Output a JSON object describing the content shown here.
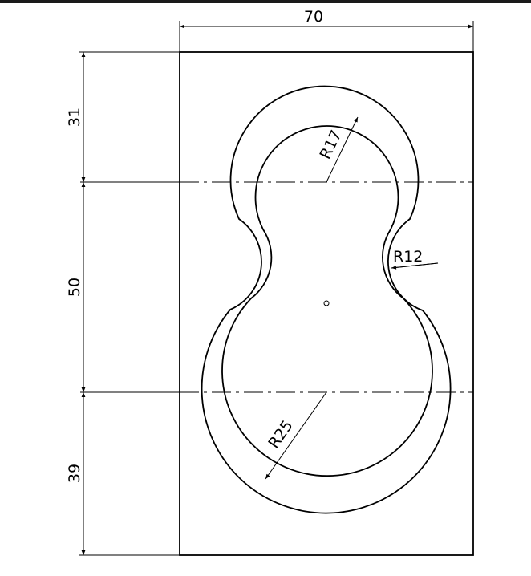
{
  "dimensions": {
    "width": "70",
    "top_section": "31",
    "middle_section": "50",
    "bottom_section": "39",
    "top_radius": "R17",
    "neck_radius": "R12",
    "bottom_radius": "R25"
  }
}
